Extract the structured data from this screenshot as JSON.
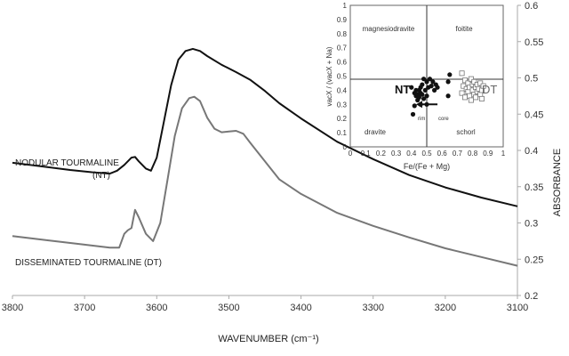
{
  "chart_data": [
    {
      "type": "line",
      "title": "",
      "xlabel": "WAVENUMBER (cm⁻¹)",
      "ylabel": "ABSORBANCE",
      "xlim": [
        3800,
        3100
      ],
      "ylim": [
        0.2,
        0.6
      ],
      "x_reversed": true,
      "x_ticks": [
        3800,
        3700,
        3600,
        3500,
        3400,
        3300,
        3200,
        3100
      ],
      "y_ticks": [
        0.2,
        0.25,
        0.3,
        0.35,
        0.4,
        0.45,
        0.5,
        0.55,
        0.6
      ],
      "y_axis_side": "right",
      "grid": false,
      "series": [
        {
          "name": "NODULAR TOURMALINE (NT)",
          "color": "#111111",
          "points": [
            [
              3800,
              0.383
            ],
            [
              3760,
              0.378
            ],
            [
              3720,
              0.373
            ],
            [
              3690,
              0.37
            ],
            [
              3665,
              0.368
            ],
            [
              3655,
              0.372
            ],
            [
              3645,
              0.38
            ],
            [
              3635,
              0.39
            ],
            [
              3630,
              0.391
            ],
            [
              3625,
              0.385
            ],
            [
              3615,
              0.375
            ],
            [
              3608,
              0.372
            ],
            [
              3600,
              0.39
            ],
            [
              3590,
              0.44
            ],
            [
              3580,
              0.49
            ],
            [
              3570,
              0.525
            ],
            [
              3560,
              0.537
            ],
            [
              3550,
              0.54
            ],
            [
              3540,
              0.537
            ],
            [
              3530,
              0.53
            ],
            [
              3510,
              0.518
            ],
            [
              3490,
              0.508
            ],
            [
              3470,
              0.497
            ],
            [
              3450,
              0.482
            ],
            [
              3430,
              0.465
            ],
            [
              3400,
              0.444
            ],
            [
              3350,
              0.412
            ],
            [
              3300,
              0.388
            ],
            [
              3250,
              0.366
            ],
            [
              3200,
              0.349
            ],
            [
              3150,
              0.335
            ],
            [
              3100,
              0.323
            ]
          ]
        },
        {
          "name": "DISSEMINATED TOURMALINE (DT)",
          "color": "#777777",
          "points": [
            [
              3800,
              0.282
            ],
            [
              3750,
              0.276
            ],
            [
              3700,
              0.27
            ],
            [
              3665,
              0.266
            ],
            [
              3652,
              0.266
            ],
            [
              3645,
              0.285
            ],
            [
              3640,
              0.29
            ],
            [
              3635,
              0.293
            ],
            [
              3630,
              0.318
            ],
            [
              3625,
              0.308
            ],
            [
              3615,
              0.285
            ],
            [
              3605,
              0.275
            ],
            [
              3595,
              0.3
            ],
            [
              3585,
              0.36
            ],
            [
              3575,
              0.42
            ],
            [
              3565,
              0.458
            ],
            [
              3555,
              0.472
            ],
            [
              3548,
              0.474
            ],
            [
              3540,
              0.468
            ],
            [
              3530,
              0.445
            ],
            [
              3520,
              0.43
            ],
            [
              3510,
              0.425
            ],
            [
              3500,
              0.426
            ],
            [
              3490,
              0.427
            ],
            [
              3480,
              0.423
            ],
            [
              3470,
              0.41
            ],
            [
              3450,
              0.385
            ],
            [
              3430,
              0.36
            ],
            [
              3400,
              0.34
            ],
            [
              3350,
              0.314
            ],
            [
              3300,
              0.296
            ],
            [
              3250,
              0.28
            ],
            [
              3200,
              0.265
            ],
            [
              3150,
              0.253
            ],
            [
              3100,
              0.241
            ]
          ]
        }
      ],
      "annotations": [
        "NODULAR TOURMALINE",
        "(NT)",
        "DISSEMINATED TOURMALINE (DT)"
      ]
    },
    {
      "type": "scatter",
      "title": "",
      "xlabel": "Fe/(Fe + Mg)",
      "ylabel": "vacX / (vacX + Na)",
      "xlim": [
        0,
        1
      ],
      "ylim": [
        0,
        1
      ],
      "x_ticks": [
        "0",
        "0.1",
        "0.2",
        "0.3",
        "0.4",
        "0.5",
        "0.6",
        "0.7",
        "0.8",
        "0.9",
        "1"
      ],
      "y_ticks": [
        "0",
        "0.1",
        "0.2",
        "0.3",
        "0.4",
        "0.5",
        "0.6",
        "0.7",
        "0.8",
        "0.9",
        "1"
      ],
      "legend": "none",
      "regions": [
        "magnesiodravite",
        "foitite",
        "dravite",
        "schorl"
      ],
      "group_labels": {
        "nt": "NT",
        "dt": "DT"
      },
      "arrow_labels": {
        "rim": "rim",
        "core": "core"
      },
      "series": [
        {
          "name": "NT",
          "marker": "filled-circle",
          "points": [
            [
              0.4,
              0.42
            ],
            [
              0.42,
              0.38
            ],
            [
              0.43,
              0.36
            ],
            [
              0.43,
              0.4
            ],
            [
              0.44,
              0.33
            ],
            [
              0.44,
              0.37
            ],
            [
              0.45,
              0.4
            ],
            [
              0.45,
              0.35
            ],
            [
              0.46,
              0.38
            ],
            [
              0.46,
              0.42
            ],
            [
              0.47,
              0.44
            ],
            [
              0.47,
              0.37
            ],
            [
              0.48,
              0.34
            ],
            [
              0.48,
              0.48
            ],
            [
              0.49,
              0.4
            ],
            [
              0.5,
              0.46
            ],
            [
              0.5,
              0.36
            ],
            [
              0.51,
              0.42
            ],
            [
              0.52,
              0.48
            ],
            [
              0.53,
              0.43
            ],
            [
              0.54,
              0.46
            ],
            [
              0.55,
              0.4
            ],
            [
              0.56,
              0.44
            ],
            [
              0.57,
              0.42
            ],
            [
              0.64,
              0.46
            ],
            [
              0.65,
              0.51
            ],
            [
              0.42,
              0.29
            ],
            [
              0.41,
              0.23
            ],
            [
              0.46,
              0.3
            ],
            [
              0.5,
              0.3
            ],
            [
              0.64,
              0.36
            ]
          ]
        },
        {
          "name": "DT",
          "marker": "open-square",
          "points": [
            [
              0.73,
              0.38
            ],
            [
              0.74,
              0.43
            ],
            [
              0.75,
              0.47
            ],
            [
              0.75,
              0.35
            ],
            [
              0.76,
              0.41
            ],
            [
              0.77,
              0.39
            ],
            [
              0.77,
              0.45
            ],
            [
              0.78,
              0.36
            ],
            [
              0.78,
              0.42
            ],
            [
              0.79,
              0.48
            ],
            [
              0.79,
              0.33
            ],
            [
              0.8,
              0.4
            ],
            [
              0.8,
              0.44
            ],
            [
              0.81,
              0.37
            ],
            [
              0.81,
              0.46
            ],
            [
              0.82,
              0.42
            ],
            [
              0.82,
              0.35
            ],
            [
              0.83,
              0.44
            ],
            [
              0.83,
              0.39
            ],
            [
              0.84,
              0.41
            ],
            [
              0.85,
              0.37
            ],
            [
              0.85,
              0.45
            ],
            [
              0.86,
              0.4
            ],
            [
              0.87,
              0.43
            ],
            [
              0.73,
              0.52
            ],
            [
              0.86,
              0.34
            ]
          ]
        }
      ],
      "arrow": {
        "from": [
          0.57,
          0.3
        ],
        "to": [
          0.43,
          0.3
        ]
      }
    }
  ]
}
